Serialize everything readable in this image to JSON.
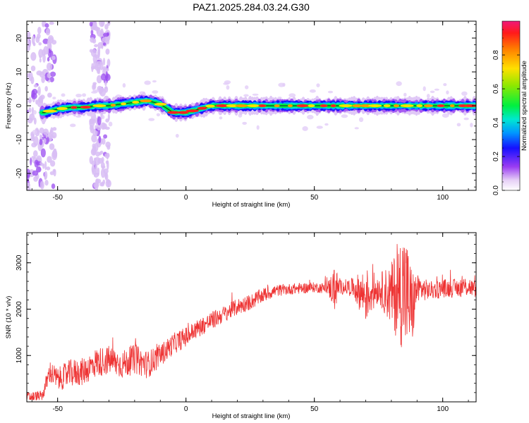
{
  "title": "PAZ1.2025.284.03.24.G30",
  "chart_data": [
    {
      "type": "heatmap",
      "panel": "top",
      "xlabel": "Height of straight line (km)",
      "ylabel": "Frequency (Hz)",
      "xlim": [
        -62,
        113
      ],
      "ylim": [
        -25,
        25
      ],
      "xticks": [
        -50,
        0,
        50,
        100
      ],
      "yticks": [
        -20,
        -10,
        0,
        10,
        20
      ],
      "colorbar": {
        "label": "Normalized spectral amplitude",
        "range": [
          0.0,
          1.0
        ],
        "ticks": [
          "0.0",
          "0.2",
          "0.4",
          "0.6",
          "0.8"
        ],
        "tick_values": [
          0.0,
          0.2,
          0.4,
          0.6,
          0.8
        ]
      },
      "signal_ridge": {
        "height_km": [
          -55,
          -50,
          -45,
          -40,
          -35,
          -30,
          -25,
          -20,
          -15,
          -10,
          -5,
          0,
          5,
          10,
          20,
          30,
          40,
          50,
          60,
          70,
          80,
          90,
          100,
          113
        ],
        "frequency_hz": [
          -2.0,
          -1.0,
          -0.5,
          -0.5,
          0.0,
          0.0,
          0.5,
          1.0,
          1.5,
          0.5,
          -2.0,
          -2.0,
          -1.0,
          0.0,
          0.0,
          0.0,
          0.0,
          0.0,
          0.0,
          0.0,
          0.0,
          0.0,
          0.0,
          0.0
        ]
      },
      "noise_bands_km": [
        [
          -62,
          -51
        ],
        [
          -37,
          -30
        ]
      ]
    },
    {
      "type": "line",
      "panel": "bottom",
      "xlabel": "Height of straight line (km)",
      "ylabel": "SNR (10 * v/v)",
      "xlim": [
        -62,
        113
      ],
      "ylim": [
        0,
        3650
      ],
      "xticks": [
        -50,
        0,
        50,
        100
      ],
      "yticks": [
        1000,
        2000,
        3000
      ],
      "series": [
        {
          "name": "SNR",
          "color": "#ee3333",
          "x": [
            -62,
            -56,
            -53,
            -50,
            -45,
            -40,
            -35,
            -30,
            -25,
            -20,
            -15,
            -10,
            -5,
            0,
            5,
            10,
            15,
            20,
            25,
            30,
            35,
            40,
            45,
            50,
            55,
            58,
            60,
            65,
            70,
            75,
            80,
            85,
            88,
            90,
            95,
            100,
            105,
            110,
            113
          ],
          "y": [
            100,
            120,
            650,
            480,
            620,
            650,
            850,
            900,
            800,
            920,
            800,
            1000,
            1250,
            1400,
            1600,
            1750,
            1900,
            2050,
            2150,
            2300,
            2400,
            2430,
            2450,
            2470,
            2450,
            2450,
            2480,
            2470,
            2300,
            2450,
            2300,
            2450,
            2000,
            2450,
            2400,
            2450,
            2450,
            2500,
            2400
          ],
          "noise_amplitude": [
            120,
            120,
            250,
            250,
            300,
            300,
            320,
            320,
            300,
            320,
            300,
            250,
            230,
            220,
            200,
            200,
            180,
            180,
            170,
            160,
            130,
            120,
            120,
            110,
            120,
            500,
            150,
            200,
            600,
            300,
            700,
            1400,
            900,
            300,
            200,
            200,
            200,
            230,
            150
          ]
        }
      ]
    }
  ]
}
